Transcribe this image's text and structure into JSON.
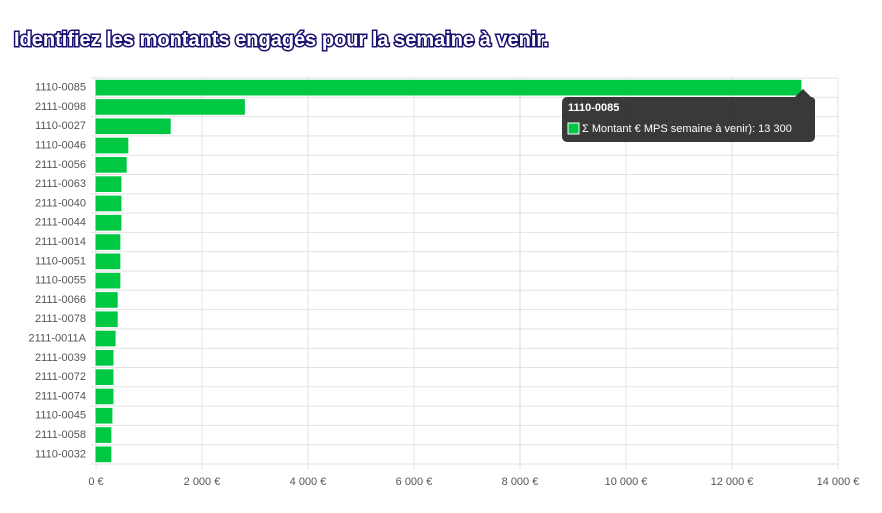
{
  "chart_data": {
    "type": "bar",
    "orientation": "horizontal",
    "title": "Identifiez les montants engagés pour la semaine à venir.",
    "categories": [
      "1110-0085",
      "2111-0098",
      "1110-0027",
      "1110-0046",
      "2111-0056",
      "2111-0063",
      "2111-0040",
      "2111-0044",
      "2111-0014",
      "1110-0051",
      "1110-0055",
      "2111-0066",
      "2111-0078",
      "2111-0011A",
      "2111-0039",
      "2111-0072",
      "2111-0074",
      "1110-0045",
      "2111-0058",
      "1110-0032"
    ],
    "series": [
      {
        "name": "Σ Montant € MPS semaine à venir):",
        "color": "#00c843",
        "values": [
          13300,
          2800,
          1400,
          600,
          570,
          470,
          470,
          470,
          450,
          450,
          450,
          400,
          400,
          360,
          320,
          320,
          320,
          300,
          280,
          280
        ]
      }
    ],
    "xlim": [
      0,
      14000
    ],
    "xticks": [
      {
        "value": 0,
        "label": "0 €"
      },
      {
        "value": 2000,
        "label": "2 000 €"
      },
      {
        "value": 4000,
        "label": "4 000 €"
      },
      {
        "value": 6000,
        "label": "6 000 €"
      },
      {
        "value": 8000,
        "label": "8 000 €"
      },
      {
        "value": 10000,
        "label": "10 000 €"
      },
      {
        "value": 12000,
        "label": "12 000 €"
      },
      {
        "value": 14000,
        "label": "14 000 €"
      }
    ],
    "grid": true,
    "tooltip": {
      "label": "13 300"
    }
  }
}
